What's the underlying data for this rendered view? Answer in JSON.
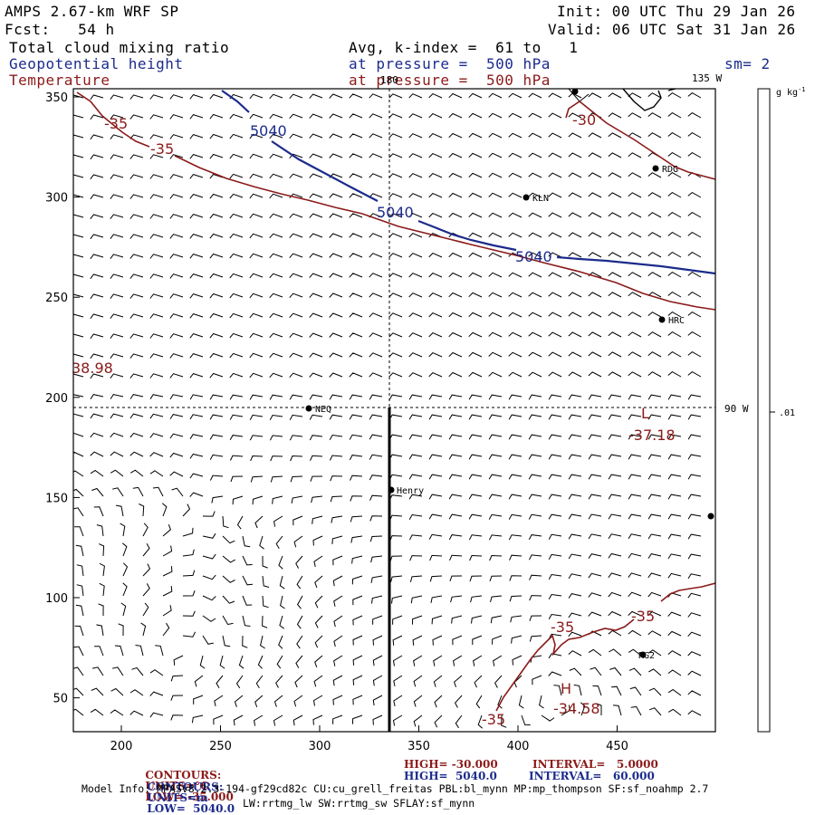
{
  "header": {
    "model_title": "AMPS 2.67-km WRF SP",
    "init": "Init: 00 UTC Thu 29 Jan 26",
    "forecast": "Fcst:   54 h",
    "valid": "Valid: 06 UTC Sat 31 Jan 26",
    "field1": "Total cloud mixing ratio",
    "field1_detail": "Avg, k-index =  61 to   1",
    "field2": "Geopotential height",
    "field2_detail": "at pressure =  500 hPa",
    "smoothing": "sm= 2",
    "field3": "Temperature",
    "field3_detail": "at pressure =  500 hPa"
  },
  "map": {
    "x_ticks": [
      "200",
      "250",
      "300",
      "350",
      "400",
      "450"
    ],
    "y_ticks": [
      "350",
      "300",
      "250",
      "200",
      "150",
      "100",
      "50"
    ],
    "meridian_labels": {
      "top": "180",
      "top_right": "135 W",
      "right": "90 W"
    },
    "stations": [
      "RDG",
      "KLN",
      "HRC",
      "NEQ",
      "Henry",
      "RG2"
    ],
    "contour_labels": {
      "height": [
        "5040",
        "5040",
        "5040"
      ],
      "temperature": [
        "-35",
        "-35",
        "-30",
        "-35",
        "-35",
        "-35"
      ]
    },
    "extrema": {
      "low_symbol": "L",
      "low_value": "-37.18",
      "high_symbol": "H",
      "high_value": "-34.58",
      "edge_value": "38.98"
    }
  },
  "colorbar": {
    "units": "g kg",
    "units_exp": "-1",
    "tick": ".01"
  },
  "footer": {
    "temp_line": {
      "label": "CONTOURS:",
      "units": "UNITS=°C",
      "low": "LOW= -35.000",
      "high": "HIGH= -30.000",
      "interval": "INTERVAL=   5.0000"
    },
    "height_line": {
      "label": "CONTOURS:",
      "units": "UNITS=m",
      "low": "LOW=  5040.0",
      "high": "HIGH=  5040.0",
      "interval": "INTERVAL=   60.000"
    },
    "model_info_1": "Model Info: MPASv8.2.3-194-gf29cd82c CU:cu_grell_freitas PBL:bl_mynn MP:mp_thompson SF:sf_noahmp 2.7",
    "model_info_2": "LW:rrtmg_lw SW:rrtmg_sw SFLAY:sf_mynn"
  },
  "colors": {
    "height": "#1c2b8c",
    "temperature": "#8b1a1a",
    "barb": "#000000",
    "frame": "#000000"
  }
}
